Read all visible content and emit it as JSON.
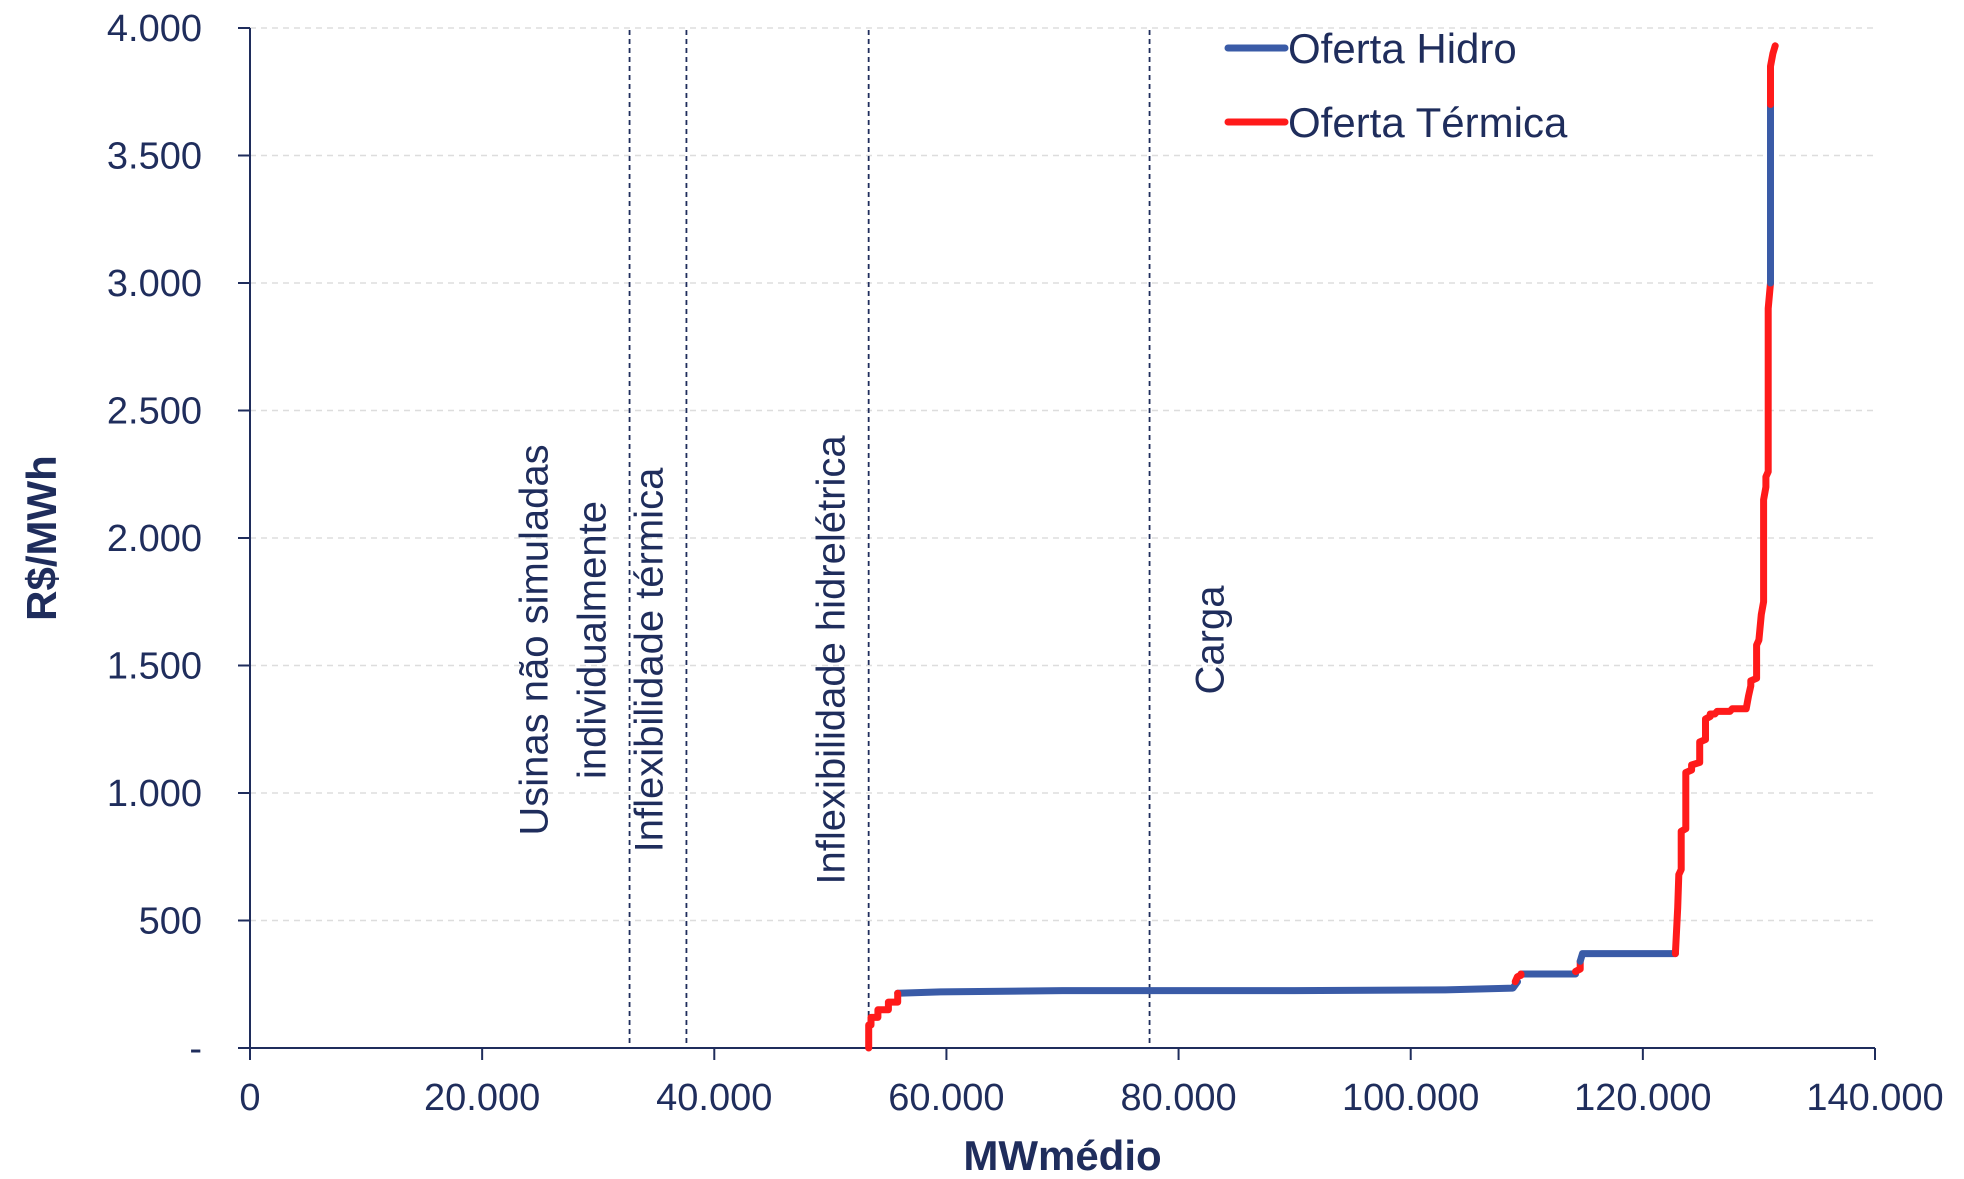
{
  "chart_data": {
    "type": "line",
    "xlabel": "MWmédio",
    "ylabel": "R$/MWh",
    "xlim": [
      0,
      140000
    ],
    "ylim": [
      0,
      4000
    ],
    "x_ticks": [
      0,
      20000,
      40000,
      60000,
      80000,
      100000,
      120000,
      140000
    ],
    "x_tick_labels": [
      "0",
      "20.000",
      "40.000",
      "60.000",
      "80.000",
      "100.000",
      "120.000",
      "140.000"
    ],
    "y_ticks": [
      0,
      500,
      1000,
      1500,
      2000,
      2500,
      3000,
      3500,
      4000
    ],
    "y_tick_labels": [
      "-",
      "500",
      "1.000",
      "1.500",
      "2.000",
      "2.500",
      "3.000",
      "3.500",
      "4.000"
    ],
    "grid": "horizontal dashed",
    "legend_position": "top-right",
    "colors": {
      "axis": "#1f2d5c",
      "hidro": "#3a5ba7",
      "termica": "#ff1a1a",
      "grid": "#dddddd"
    },
    "vertical_lines": [
      {
        "x": 32700,
        "label_lines": [
          "Usinas não simuladas",
          "individualmente"
        ]
      },
      {
        "x": 37600,
        "label_lines": [
          "Inflexibilidade térmica"
        ]
      },
      {
        "x": 53300,
        "label_lines": [
          "Inflexibilidade hidrelétrica"
        ]
      },
      {
        "x": 77500,
        "label_lines": [
          "Carga"
        ]
      }
    ],
    "series": [
      {
        "name": "Oferta Hidro",
        "x": [
          55800,
          59500,
          70000,
          80000,
          90000,
          103000,
          108800,
          109200
        ],
        "y": [
          215,
          220,
          225,
          225,
          225,
          228,
          235,
          260
        ]
      },
      {
        "name": "Oferta Térmica",
        "x": [
          53300,
          53300,
          53500,
          53500,
          54100,
          54100,
          55000,
          55000,
          55800,
          55800
        ],
        "y": [
          0,
          90,
          90,
          120,
          120,
          150,
          150,
          180,
          180,
          215
        ]
      },
      {
        "name": "Oferta Hidro",
        "x": [
          109500,
          114200
        ],
        "y": [
          290,
          290
        ]
      },
      {
        "name": "Oferta Térmica",
        "x": [
          109000,
          109200,
          109500,
          109500
        ],
        "y": [
          260,
          280,
          285,
          290
        ]
      },
      {
        "name": "Oferta Térmica",
        "x": [
          114200,
          114600,
          114600
        ],
        "y": [
          300,
          310,
          340
        ]
      },
      {
        "name": "Oferta Hidro",
        "x": [
          114600,
          114800,
          122800
        ],
        "y": [
          340,
          370,
          370
        ]
      },
      {
        "name": "Oferta Térmica",
        "x": [
          122800,
          123000,
          123100,
          123300,
          123300,
          123700,
          123700,
          124200,
          124200,
          124900,
          124900,
          125400,
          125400,
          125800,
          125800,
          126200,
          126400,
          127500,
          127700,
          128900,
          129100,
          129300,
          129300,
          129800,
          129800,
          130000,
          130200,
          130400,
          130400,
          130600,
          130600,
          130800,
          130800,
          131000
        ],
        "y": [
          370,
          550,
          680,
          700,
          850,
          860,
          1080,
          1090,
          1110,
          1120,
          1200,
          1210,
          1290,
          1300,
          1310,
          1310,
          1320,
          1320,
          1330,
          1330,
          1380,
          1420,
          1440,
          1450,
          1580,
          1600,
          1700,
          1750,
          2150,
          2200,
          2240,
          2260,
          2900,
          3000
        ]
      },
      {
        "name": "Oferta Hidro",
        "x": [
          131000,
          131000
        ],
        "y": [
          3000,
          3700
        ]
      },
      {
        "name": "Oferta Térmica",
        "x": [
          131000,
          131000,
          131200,
          131400
        ],
        "y": [
          3700,
          3850,
          3900,
          3930
        ]
      }
    ],
    "legend": [
      {
        "name": "Oferta Hidro",
        "color": "#3a5ba7"
      },
      {
        "name": "Oferta Térmica",
        "color": "#ff1a1a"
      }
    ]
  }
}
